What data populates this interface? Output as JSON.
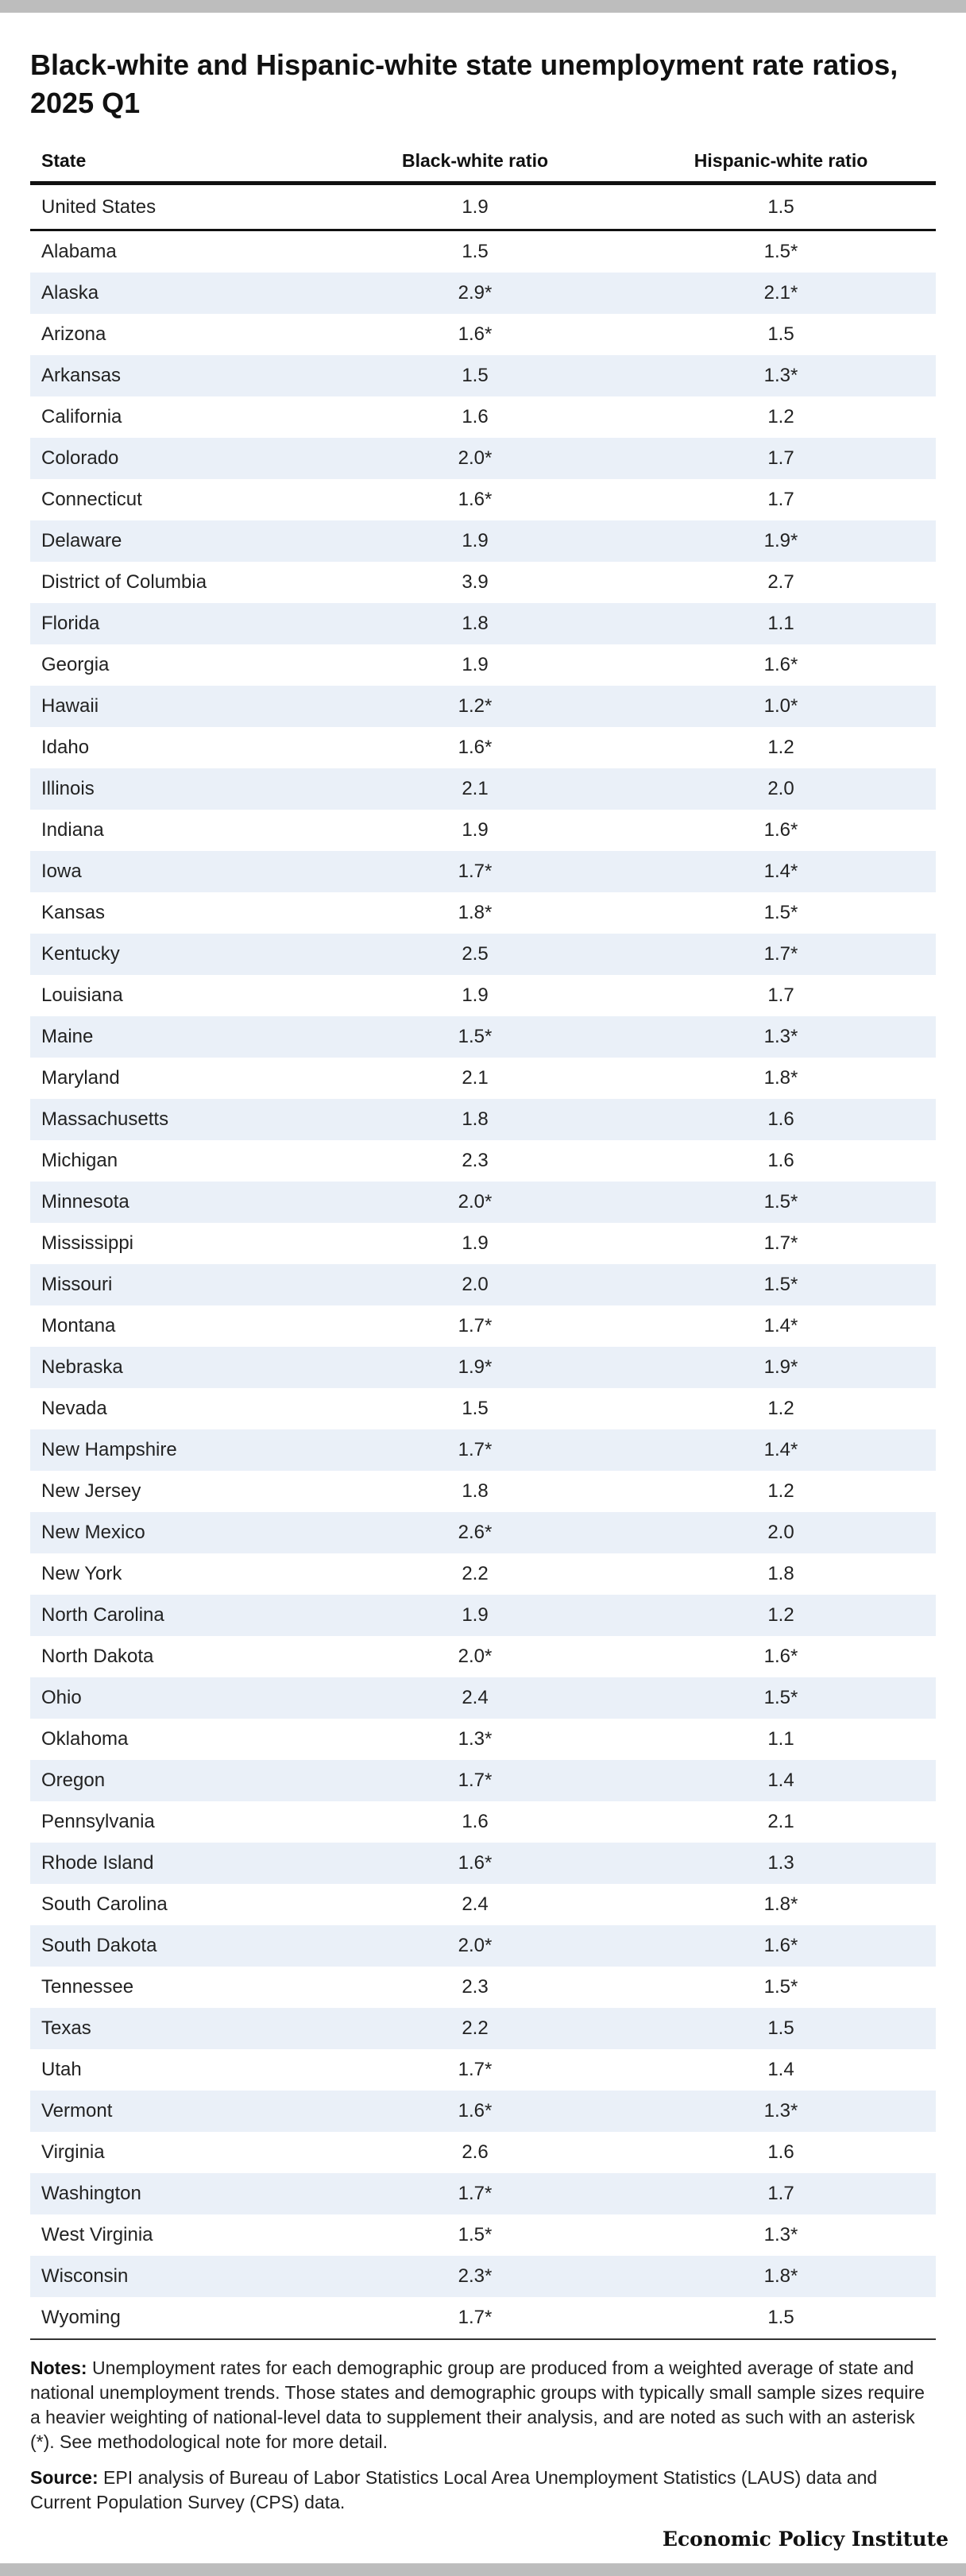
{
  "chart_data": {
    "type": "table",
    "title": "Black-white and Hispanic-white state unemployment rate ratios, 2025 Q1",
    "columns": [
      "State",
      "Black-white ratio",
      "Hispanic-white ratio"
    ],
    "rows": [
      [
        "United States",
        "1.9",
        "1.5"
      ],
      [
        "Alabama",
        "1.5",
        "1.5*"
      ],
      [
        "Alaska",
        "2.9*",
        "2.1*"
      ],
      [
        "Arizona",
        "1.6*",
        "1.5"
      ],
      [
        "Arkansas",
        "1.5",
        "1.3*"
      ],
      [
        "California",
        "1.6",
        "1.2"
      ],
      [
        "Colorado",
        "2.0*",
        "1.7"
      ],
      [
        "Connecticut",
        "1.6*",
        "1.7"
      ],
      [
        "Delaware",
        "1.9",
        "1.9*"
      ],
      [
        "District of Columbia",
        "3.9",
        "2.7"
      ],
      [
        "Florida",
        "1.8",
        "1.1"
      ],
      [
        "Georgia",
        "1.9",
        "1.6*"
      ],
      [
        "Hawaii",
        "1.2*",
        "1.0*"
      ],
      [
        "Idaho",
        "1.6*",
        "1.2"
      ],
      [
        "Illinois",
        "2.1",
        "2.0"
      ],
      [
        "Indiana",
        "1.9",
        "1.6*"
      ],
      [
        "Iowa",
        "1.7*",
        "1.4*"
      ],
      [
        "Kansas",
        "1.8*",
        "1.5*"
      ],
      [
        "Kentucky",
        "2.5",
        "1.7*"
      ],
      [
        "Louisiana",
        "1.9",
        "1.7"
      ],
      [
        "Maine",
        "1.5*",
        "1.3*"
      ],
      [
        "Maryland",
        "2.1",
        "1.8*"
      ],
      [
        "Massachusetts",
        "1.8",
        "1.6"
      ],
      [
        "Michigan",
        "2.3",
        "1.6"
      ],
      [
        "Minnesota",
        "2.0*",
        "1.5*"
      ],
      [
        "Mississippi",
        "1.9",
        "1.7*"
      ],
      [
        "Missouri",
        "2.0",
        "1.5*"
      ],
      [
        "Montana",
        "1.7*",
        "1.4*"
      ],
      [
        "Nebraska",
        "1.9*",
        "1.9*"
      ],
      [
        "Nevada",
        "1.5",
        "1.2"
      ],
      [
        "New Hampshire",
        "1.7*",
        "1.4*"
      ],
      [
        "New Jersey",
        "1.8",
        "1.2"
      ],
      [
        "New Mexico",
        "2.6*",
        "2.0"
      ],
      [
        "New York",
        "2.2",
        "1.8"
      ],
      [
        "North Carolina",
        "1.9",
        "1.2"
      ],
      [
        "North Dakota",
        "2.0*",
        "1.6*"
      ],
      [
        "Ohio",
        "2.4",
        "1.5*"
      ],
      [
        "Oklahoma",
        "1.3*",
        "1.1"
      ],
      [
        "Oregon",
        "1.7*",
        "1.4"
      ],
      [
        "Pennsylvania",
        "1.6",
        "2.1"
      ],
      [
        "Rhode Island",
        "1.6*",
        "1.3"
      ],
      [
        "South Carolina",
        "2.4",
        "1.8*"
      ],
      [
        "South Dakota",
        "2.0*",
        "1.6*"
      ],
      [
        "Tennessee",
        "2.3",
        "1.5*"
      ],
      [
        "Texas",
        "2.2",
        "1.5"
      ],
      [
        "Utah",
        "1.7*",
        "1.4"
      ],
      [
        "Vermont",
        "1.6*",
        "1.3*"
      ],
      [
        "Virginia",
        "2.6",
        "1.6"
      ],
      [
        "Washington",
        "1.7*",
        "1.7"
      ],
      [
        "West Virginia",
        "1.5*",
        "1.3*"
      ],
      [
        "Wisconsin",
        "2.3*",
        "1.8*"
      ],
      [
        "Wyoming",
        "1.7*",
        "1.5"
      ]
    ]
  },
  "notes": {
    "label": "Notes:",
    "text": "Unemployment rates for each demographic group are produced from a weighted average of state and national unemployment trends. Those states and demographic groups with typically small sample sizes require a heavier weighting of national-level data to supplement their analysis, and are noted as such with an asterisk (*). See methodological note for more detail."
  },
  "source": {
    "label": "Source:",
    "text": "EPI analysis of Bureau of Labor Statistics Local Area Unemployment Statistics (LAUS) data and Current Population Survey (CPS) data."
  },
  "brand": "Economic Policy Institute",
  "colors": {
    "row_shade": "#eaf0f8",
    "rule": "#111111",
    "frame_bar": "#bdbdbd"
  }
}
